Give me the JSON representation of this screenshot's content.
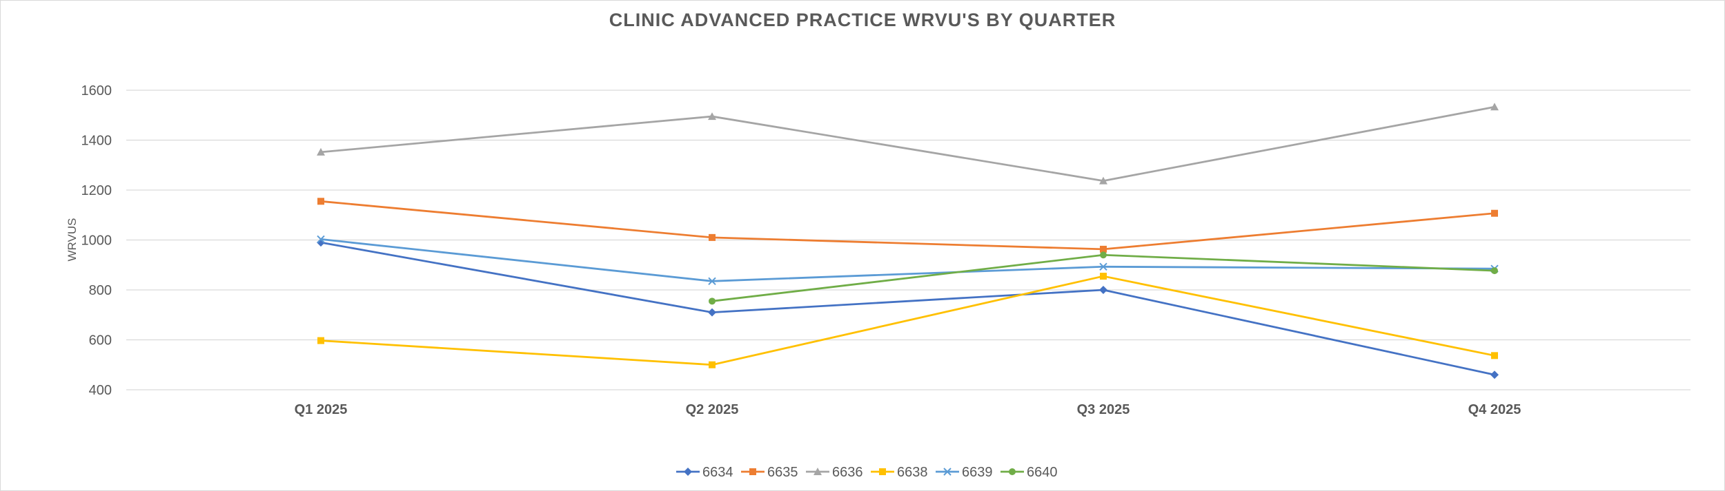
{
  "chart_data": {
    "type": "line",
    "title": "CLINIC ADVANCED PRACTICE WRVU'S BY QUARTER",
    "xlabel": "",
    "ylabel": "WRVUS",
    "categories": [
      "Q1 2025",
      "Q2 2025",
      "Q3 2025",
      "Q4 2025"
    ],
    "ylim": [
      400,
      1600
    ],
    "yticks": [
      400,
      600,
      800,
      1000,
      1200,
      1400,
      1600
    ],
    "grid": true,
    "legend_position": "bottom",
    "series": [
      {
        "name": "6634",
        "color": "#4472c4",
        "marker": "diamond",
        "values": [
          990,
          710,
          800,
          460
        ]
      },
      {
        "name": "6635",
        "color": "#ed7d31",
        "marker": "square",
        "values": [
          1155,
          1010,
          963,
          1107
        ]
      },
      {
        "name": "6636",
        "color": "#a5a5a5",
        "marker": "triangle",
        "values": [
          1352,
          1495,
          1237,
          1533
        ]
      },
      {
        "name": "6638",
        "color": "#ffc000",
        "marker": "square",
        "values": [
          597,
          500,
          855,
          537
        ]
      },
      {
        "name": "6639",
        "color": "#5b9bd5",
        "marker": "x",
        "values": [
          1003,
          835,
          893,
          885
        ]
      },
      {
        "name": "6640",
        "color": "#70ad47",
        "marker": "circle",
        "values": [
          null,
          755,
          940,
          877
        ]
      }
    ]
  }
}
